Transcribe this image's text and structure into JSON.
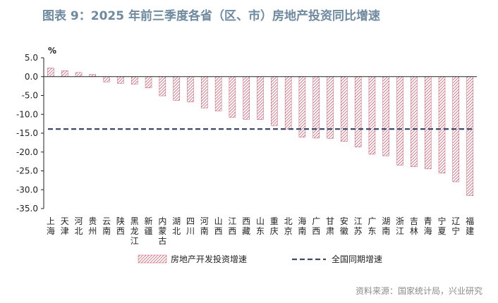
{
  "title": "图表 9：2025 年前三季度各省（区、市）房地产投资同比增速",
  "source": "资料来源：国家统计局，兴业研究",
  "colors": {
    "title": "#6e8aa0",
    "bar": "#c0364f",
    "reference_line": "#3b4a6b"
  },
  "chart_data": {
    "type": "bar",
    "title": "",
    "ylabel": "%",
    "xlabel": "",
    "ylim": [
      -35,
      5
    ],
    "yticks": [
      "5.0",
      "0.0",
      "-5.0",
      "-10.0",
      "-15.0",
      "-20.0",
      "-25.0",
      "-30.0",
      "-35.0"
    ],
    "categories": [
      "上海",
      "天津",
      "河北",
      "贵州",
      "云南",
      "陕西",
      "黑龙江",
      "新疆",
      "内蒙古",
      "湖北",
      "四川",
      "河南",
      "山西",
      "江西",
      "西藏",
      "山东",
      "重庆",
      "北京",
      "海南",
      "广西",
      "甘肃",
      "安徽",
      "江苏",
      "广东",
      "湖南",
      "浙江",
      "吉林",
      "青海",
      "宁夏",
      "辽宁",
      "福建"
    ],
    "series": [
      {
        "name": "房地产开发投资增速",
        "values": [
          2.3,
          1.6,
          1.1,
          0.6,
          -1.4,
          -1.8,
          -2.0,
          -3.0,
          -5.1,
          -6.3,
          -6.7,
          -8.3,
          -9.1,
          -10.8,
          -11.3,
          -11.4,
          -13.0,
          -13.9,
          -16.1,
          -16.3,
          -16.4,
          -17.2,
          -18.7,
          -20.6,
          -21.0,
          -23.5,
          -23.9,
          -24.5,
          -25.6,
          -27.9,
          -31.6
        ]
      },
      {
        "name": "全国同期增速",
        "value": -13.9
      }
    ],
    "grid": false,
    "legend_position": "bottom"
  }
}
